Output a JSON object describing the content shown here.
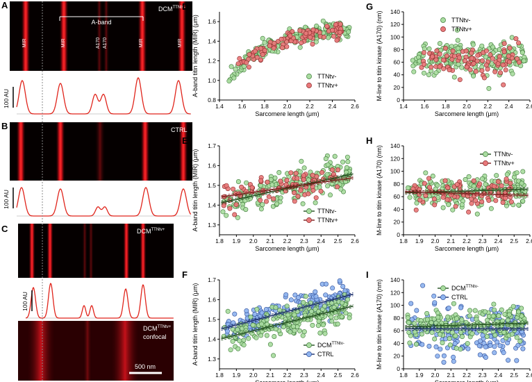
{
  "colors": {
    "green": "#a9dca0",
    "green_edge": "#3f7a3a",
    "red": "#e8787a",
    "red_edge": "#8a2b2b",
    "blue": "#8fb4ef",
    "blue_edge": "#2f4f9a",
    "profile": "#e0231a",
    "fit_green": "#1f4d1c",
    "fit_red": "#7a1a1a",
    "fit_blue": "#1a2d6b"
  },
  "panels": {
    "A": {
      "letter": "A",
      "title": "DCM",
      "title_sup": "TTNtv-",
      "aband": "A-band",
      "labels": [
        "MIR",
        "MIR",
        "A170",
        "A170",
        "MIR",
        "MIR"
      ],
      "scale": "100 AU"
    },
    "B": {
      "letter": "B",
      "title": "CTRL",
      "scale": "100 AU"
    },
    "C": {
      "letter": "C",
      "title": "DCM",
      "title_sup": "TTNtv+",
      "scale": "100 AU",
      "confocal_title": "DCM",
      "confocal_sup": "TTNtv+",
      "confocal_word": "confocal",
      "scalebar": "500 nm"
    }
  },
  "chart_data": [
    {
      "id": "D",
      "type": "scatter",
      "letter": "D",
      "xlabel": "Sarcomere length (μm)",
      "ylabel": "A-band titin length (MIR) (μm)",
      "xlim": [
        1.4,
        2.6
      ],
      "ylim": [
        0.8,
        1.7
      ],
      "xticks": [
        "1.4",
        "1.6",
        "1.8",
        "2.0",
        "2.2",
        "2.4",
        "2.6"
      ],
      "yticks": [
        "0.8",
        "1.0",
        "1.2",
        "1.4",
        "1.6"
      ],
      "legend_position": "bottom-right",
      "series": [
        {
          "name": "TTNtv-",
          "color": "green",
          "x_range": [
            1.48,
            2.56
          ],
          "trend": "curve_up",
          "base": 1.5,
          "spread": 0.05,
          "n": 200
        },
        {
          "name": "TTNtv+",
          "color": "red",
          "x_range": [
            1.55,
            2.5
          ],
          "trend": "curve_up",
          "base": 1.49,
          "spread": 0.05,
          "n": 90
        }
      ]
    },
    {
      "id": "G",
      "type": "scatter",
      "letter": "G",
      "xlabel": "Sarcomere length (μm)",
      "ylabel": "M-line to titin kinase (A170) (nm)",
      "xlim": [
        1.4,
        2.6
      ],
      "ylim": [
        0,
        140
      ],
      "xticks": [
        "1.4",
        "1.6",
        "1.8",
        "2.0",
        "2.2",
        "2.4",
        "2.6"
      ],
      "yticks": [
        "0",
        "20",
        "40",
        "60",
        "80",
        "100",
        "120",
        "140"
      ],
      "legend_position": "top-center",
      "series": [
        {
          "name": "TTNtv-",
          "color": "green",
          "x_range": [
            1.48,
            2.56
          ],
          "mean": 65,
          "spread": 14,
          "n": 200
        },
        {
          "name": "TTNtv+",
          "color": "red",
          "x_range": [
            1.55,
            2.5
          ],
          "mean": 64,
          "spread": 14,
          "n": 90
        }
      ]
    },
    {
      "id": "E",
      "type": "scatter",
      "letter": "E",
      "xlabel": "Sarcomere length (μm)",
      "ylabel": "A-band titin length (MIR) (μm)",
      "xlim": [
        1.8,
        2.6
      ],
      "ylim": [
        1.25,
        1.7
      ],
      "xticks": [
        "1.8",
        "1.9",
        "2.0",
        "2.1",
        "2.2",
        "2.3",
        "2.4",
        "2.5",
        "2.6"
      ],
      "yticks": [
        "1.3",
        "1.4",
        "1.5",
        "1.6",
        "1.7"
      ],
      "legend_position": "bottom-right",
      "series": [
        {
          "name": "TTNtv-",
          "color": "green",
          "x_range": [
            1.82,
            2.57
          ],
          "fit": [
            1.41,
            1.56
          ],
          "spread": 0.045,
          "n": 200
        },
        {
          "name": "TTNtv+",
          "color": "red",
          "x_range": [
            1.82,
            2.5
          ],
          "fit": [
            1.44,
            1.54
          ],
          "spread": 0.04,
          "n": 80
        }
      ]
    },
    {
      "id": "H",
      "type": "scatter",
      "letter": "H",
      "xlabel": "Sarcomere length (μm)",
      "ylabel": "M-line to titin kinase (A170) (nm)",
      "xlim": [
        1.8,
        2.6
      ],
      "ylim": [
        0,
        140
      ],
      "xticks": [
        "1.8",
        "1.9",
        "2.0",
        "2.1",
        "2.2",
        "2.3",
        "2.4",
        "2.5",
        "2.6"
      ],
      "yticks": [
        "0",
        "20",
        "40",
        "60",
        "80",
        "100",
        "120",
        "140"
      ],
      "legend_position": "top-right",
      "series": [
        {
          "name": "TTNtv-",
          "color": "green",
          "x_range": [
            1.82,
            2.57
          ],
          "fit": [
            66,
            72
          ],
          "spread": 13,
          "n": 200
        },
        {
          "name": "TTNtv+",
          "color": "red",
          "x_range": [
            1.82,
            2.5
          ],
          "fit": [
            68,
            62
          ],
          "spread": 12,
          "n": 80
        }
      ]
    },
    {
      "id": "F",
      "type": "scatter",
      "letter": "F",
      "xlabel": "Sarcomere length (μm)",
      "ylabel": "A-band titin length (MIR) (μm)",
      "xlim": [
        1.8,
        2.6
      ],
      "ylim": [
        1.25,
        1.7
      ],
      "xticks": [
        "1.8",
        "1.9",
        "2.0",
        "2.1",
        "2.2",
        "2.3",
        "2.4",
        "2.5",
        "2.6"
      ],
      "yticks": [
        "1.3",
        "1.4",
        "1.5",
        "1.6",
        "1.7"
      ],
      "legend_position": "bottom-right",
      "series": [
        {
          "name": "CTRL",
          "color": "blue",
          "x_range": [
            1.84,
            2.56
          ],
          "fit": [
            1.45,
            1.63
          ],
          "spread": 0.035,
          "n": 190
        },
        {
          "name": "DCM",
          "name_sup": "TTNtv-",
          "color": "green",
          "x_range": [
            1.82,
            2.57
          ],
          "fit": [
            1.4,
            1.57
          ],
          "spread": 0.04,
          "n": 200
        }
      ]
    },
    {
      "id": "I",
      "type": "scatter",
      "letter": "I",
      "xlabel": "Sarcomere length (μm)",
      "ylabel": "M-line to titin kinase (A170) (nm)",
      "xlim": [
        1.8,
        2.6
      ],
      "ylim": [
        0,
        140
      ],
      "xticks": [
        "1.8",
        "1.9",
        "2.0",
        "2.1",
        "2.2",
        "2.3",
        "2.4",
        "2.5",
        "2.6"
      ],
      "yticks": [
        "0",
        "20",
        "40",
        "60",
        "80",
        "100",
        "120",
        "140"
      ],
      "legend_position": "top-center",
      "series": [
        {
          "name": "CTRL",
          "color": "blue",
          "x_range": [
            1.84,
            2.56
          ],
          "fit": [
            63,
            63
          ],
          "spread": 20,
          "n": 190
        },
        {
          "name": "DCM",
          "name_sup": "TTNtv-",
          "color": "green",
          "x_range": [
            1.82,
            2.57
          ],
          "fit": [
            66,
            72
          ],
          "spread": 12,
          "n": 200
        }
      ]
    }
  ]
}
